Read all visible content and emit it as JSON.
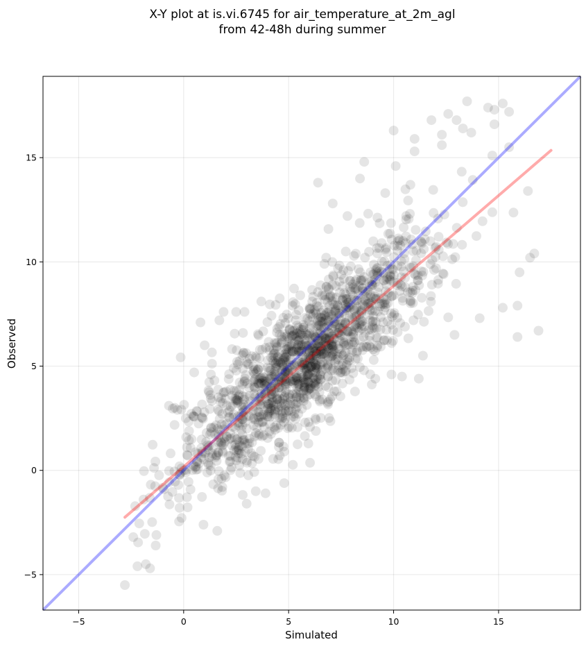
{
  "chart_data": {
    "type": "scatter",
    "title_line1": "X-Y plot at is.vi.6745 for air_temperature_at_2m_agl",
    "title_line2": "from 42-48h during summer",
    "xlabel": "Simulated",
    "ylabel": "Observed",
    "xlim": [
      -6.7,
      18.9
    ],
    "ylim": [
      -6.7,
      18.9
    ],
    "xticks": [
      -5,
      0,
      5,
      10,
      15
    ],
    "yticks": [
      -5,
      0,
      5,
      10,
      15
    ],
    "xtick_labels": [
      "−5",
      "0",
      "5",
      "10",
      "15"
    ],
    "ytick_labels": [
      "−5",
      "0",
      "5",
      "10",
      "15"
    ],
    "grid": true,
    "point_color": "#000000",
    "point_alpha": 0.1,
    "identity_line": {
      "color": "#0000ff",
      "alpha": 0.33,
      "x": [
        -6.7,
        18.9
      ],
      "y": [
        -6.7,
        18.9
      ]
    },
    "regression_line": {
      "color": "#ff0000",
      "alpha": 0.33,
      "x": [
        -2.8,
        17.5
      ],
      "y": [
        -2.25,
        15.35
      ]
    },
    "cloud": {
      "count": 1500,
      "x_mean": 5.8,
      "x_sd": 3.0,
      "slope": 0.87,
      "intercept": 0.2,
      "residual_sd": 1.5
    },
    "points": [
      [
        -2.8,
        -5.5
      ],
      [
        -2.4,
        -3.2
      ],
      [
        -2.2,
        -4.6
      ],
      [
        -1.8,
        -4.5
      ],
      [
        -1.6,
        -4.7
      ],
      [
        -1.3,
        -3.1
      ],
      [
        -0.7,
        3.1
      ],
      [
        -0.3,
        2.9
      ],
      [
        0.1,
        2.5
      ],
      [
        0.5,
        4.7
      ],
      [
        0.8,
        7.1
      ],
      [
        1.0,
        6.0
      ],
      [
        1.3,
        4.6
      ],
      [
        1.6,
        -2.9
      ],
      [
        1.7,
        7.2
      ],
      [
        1.9,
        7.6
      ],
      [
        2.5,
        7.6
      ],
      [
        2.9,
        7.6
      ],
      [
        3.0,
        -1.6
      ],
      [
        3.7,
        8.1
      ],
      [
        3.9,
        -1.1
      ],
      [
        6.4,
        13.8
      ],
      [
        7.1,
        12.8
      ],
      [
        7.8,
        12.2
      ],
      [
        8.6,
        14.8
      ],
      [
        8.4,
        14.0
      ],
      [
        9.6,
        13.3
      ],
      [
        10.1,
        14.6
      ],
      [
        10.0,
        16.3
      ],
      [
        10.6,
        12.2
      ],
      [
        10.8,
        13.7
      ],
      [
        11.0,
        15.9
      ],
      [
        11.0,
        15.3
      ],
      [
        11.8,
        16.8
      ],
      [
        12.3,
        16.1
      ],
      [
        12.3,
        15.6
      ],
      [
        12.6,
        17.1
      ],
      [
        13.0,
        16.8
      ],
      [
        13.3,
        16.4
      ],
      [
        13.5,
        17.7
      ],
      [
        13.7,
        16.2
      ],
      [
        14.5,
        17.4
      ],
      [
        14.8,
        17.3
      ],
      [
        14.8,
        16.6
      ],
      [
        15.2,
        17.6
      ],
      [
        15.5,
        17.2
      ],
      [
        14.7,
        15.1
      ],
      [
        15.5,
        15.5
      ],
      [
        12.9,
        6.5
      ],
      [
        14.1,
        7.3
      ],
      [
        15.2,
        7.8
      ],
      [
        15.9,
        7.9
      ],
      [
        15.9,
        6.4
      ],
      [
        16.0,
        9.5
      ],
      [
        16.5,
        10.2
      ],
      [
        16.7,
        10.4
      ],
      [
        16.9,
        6.7
      ],
      [
        16.4,
        13.4
      ],
      [
        11.2,
        4.4
      ],
      [
        10.4,
        4.5
      ],
      [
        9.9,
        4.6
      ],
      [
        11.4,
        5.5
      ],
      [
        0.0,
        0.0
      ],
      [
        0.1,
        -0.1
      ],
      [
        -0.1,
        0.1
      ],
      [
        -0.2,
        -0.2
      ]
    ]
  }
}
